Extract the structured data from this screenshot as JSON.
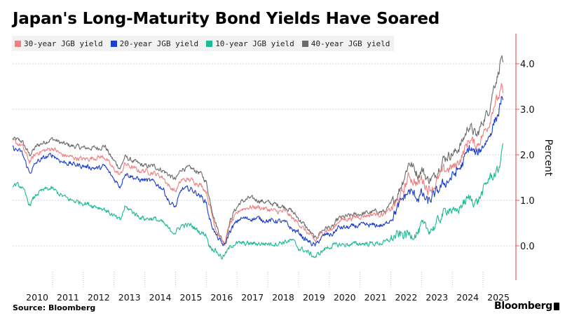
{
  "title": "Japan's Long-Maturity Bond Yields Have Soared",
  "source": "Source: Bloomberg",
  "brand": "Bloomberg",
  "chart_data": {
    "type": "line",
    "ylabel": "Percent",
    "ylim": [
      -0.75,
      4.7
    ],
    "xlim": [
      2009.7,
      2025.75
    ],
    "yticks": [
      {
        "value": 0.0,
        "label": "0.0"
      },
      {
        "value": 1.0,
        "label": "1.0"
      },
      {
        "value": 2.0,
        "label": "2.0"
      },
      {
        "value": 3.0,
        "label": "3.0"
      },
      {
        "value": 4.0,
        "label": "4.0"
      }
    ],
    "xticks": [
      {
        "value": 2010,
        "label": "2010"
      },
      {
        "value": 2011,
        "label": "2011"
      },
      {
        "value": 2012,
        "label": "2012"
      },
      {
        "value": 2013,
        "label": "2013"
      },
      {
        "value": 2014,
        "label": "2014"
      },
      {
        "value": 2015,
        "label": "2015"
      },
      {
        "value": 2016,
        "label": "2016"
      },
      {
        "value": 2017,
        "label": "2017"
      },
      {
        "value": 2018,
        "label": "2018"
      },
      {
        "value": 2019,
        "label": "2019"
      },
      {
        "value": 2020,
        "label": "2020"
      },
      {
        "value": 2021,
        "label": "2021"
      },
      {
        "value": 2022,
        "label": "2022"
      },
      {
        "value": 2023,
        "label": "2023"
      },
      {
        "value": 2024,
        "label": "2024"
      },
      {
        "value": 2025,
        "label": "2025"
      }
    ],
    "year_separators": [
      2011,
      2012,
      2013,
      2014,
      2015,
      2016,
      2017,
      2018,
      2019,
      2020,
      2021,
      2022,
      2023,
      2024,
      2025
    ],
    "series": [
      {
        "name": "40-year JGB yield",
        "label": "40-year JGB yield",
        "color": "#6b6b6b",
        "points": [
          [
            2009.7,
            2.35
          ],
          [
            2010.0,
            2.3
          ],
          [
            2010.25,
            2.0
          ],
          [
            2010.5,
            2.2
          ],
          [
            2010.8,
            2.3
          ],
          [
            2011.0,
            2.35
          ],
          [
            2011.3,
            2.25
          ],
          [
            2011.6,
            2.2
          ],
          [
            2012.0,
            2.15
          ],
          [
            2012.5,
            2.15
          ],
          [
            2012.7,
            2.2
          ],
          [
            2012.9,
            1.95
          ],
          [
            2013.2,
            1.7
          ],
          [
            2013.35,
            1.95
          ],
          [
            2013.5,
            1.9
          ],
          [
            2013.8,
            1.8
          ],
          [
            2014.0,
            1.75
          ],
          [
            2014.3,
            1.75
          ],
          [
            2014.6,
            1.65
          ],
          [
            2014.8,
            1.55
          ],
          [
            2015.0,
            1.45
          ],
          [
            2015.2,
            1.7
          ],
          [
            2015.5,
            1.7
          ],
          [
            2015.8,
            1.6
          ],
          [
            2016.0,
            1.4
          ],
          [
            2016.1,
            1.05
          ],
          [
            2016.3,
            0.5
          ],
          [
            2016.5,
            0.15
          ],
          [
            2016.6,
            0.05
          ],
          [
            2016.75,
            0.5
          ],
          [
            2016.9,
            0.75
          ],
          [
            2017.1,
            0.95
          ],
          [
            2017.4,
            1.05
          ],
          [
            2017.7,
            1.0
          ],
          [
            2018.0,
            0.95
          ],
          [
            2018.3,
            0.9
          ],
          [
            2018.6,
            0.85
          ],
          [
            2018.8,
            0.75
          ],
          [
            2019.0,
            0.6
          ],
          [
            2019.2,
            0.45
          ],
          [
            2019.55,
            0.15
          ],
          [
            2019.7,
            0.3
          ],
          [
            2019.9,
            0.4
          ],
          [
            2020.1,
            0.4
          ],
          [
            2020.3,
            0.6
          ],
          [
            2020.6,
            0.65
          ],
          [
            2021.0,
            0.7
          ],
          [
            2021.5,
            0.75
          ],
          [
            2021.8,
            0.75
          ],
          [
            2022.0,
            0.9
          ],
          [
            2022.2,
            1.1
          ],
          [
            2022.4,
            1.45
          ],
          [
            2022.6,
            1.85
          ],
          [
            2022.7,
            1.75
          ],
          [
            2022.9,
            1.55
          ],
          [
            2023.0,
            1.7
          ],
          [
            2023.2,
            1.45
          ],
          [
            2023.4,
            1.5
          ],
          [
            2023.7,
            1.9
          ],
          [
            2023.9,
            2.0
          ],
          [
            2024.1,
            2.05
          ],
          [
            2024.3,
            2.25
          ],
          [
            2024.55,
            2.65
          ],
          [
            2024.8,
            2.4
          ],
          [
            2025.0,
            2.75
          ],
          [
            2025.2,
            3.0
          ],
          [
            2025.35,
            3.5
          ],
          [
            2025.5,
            3.8
          ],
          [
            2025.6,
            4.2
          ],
          [
            2025.65,
            3.9
          ]
        ]
      },
      {
        "name": "30-year JGB yield",
        "label": "30-year JGB yield",
        "color": "#f07f7f",
        "points": [
          [
            2009.7,
            2.3
          ],
          [
            2010.0,
            2.2
          ],
          [
            2010.25,
            1.85
          ],
          [
            2010.5,
            2.05
          ],
          [
            2010.8,
            2.1
          ],
          [
            2011.0,
            2.15
          ],
          [
            2011.3,
            2.0
          ],
          [
            2011.6,
            1.95
          ],
          [
            2012.0,
            1.9
          ],
          [
            2012.5,
            1.95
          ],
          [
            2012.7,
            1.95
          ],
          [
            2012.9,
            1.75
          ],
          [
            2013.2,
            1.55
          ],
          [
            2013.35,
            1.8
          ],
          [
            2013.5,
            1.75
          ],
          [
            2013.8,
            1.65
          ],
          [
            2014.0,
            1.65
          ],
          [
            2014.3,
            1.6
          ],
          [
            2014.6,
            1.5
          ],
          [
            2014.8,
            1.3
          ],
          [
            2015.0,
            1.2
          ],
          [
            2015.2,
            1.45
          ],
          [
            2015.5,
            1.45
          ],
          [
            2015.8,
            1.35
          ],
          [
            2016.0,
            1.2
          ],
          [
            2016.1,
            0.9
          ],
          [
            2016.3,
            0.4
          ],
          [
            2016.5,
            0.1
          ],
          [
            2016.6,
            0.05
          ],
          [
            2016.75,
            0.45
          ],
          [
            2016.9,
            0.6
          ],
          [
            2017.1,
            0.8
          ],
          [
            2017.4,
            0.85
          ],
          [
            2017.7,
            0.85
          ],
          [
            2018.0,
            0.8
          ],
          [
            2018.3,
            0.75
          ],
          [
            2018.6,
            0.75
          ],
          [
            2018.8,
            0.6
          ],
          [
            2019.0,
            0.5
          ],
          [
            2019.2,
            0.35
          ],
          [
            2019.55,
            0.1
          ],
          [
            2019.7,
            0.25
          ],
          [
            2019.9,
            0.35
          ],
          [
            2020.1,
            0.35
          ],
          [
            2020.3,
            0.55
          ],
          [
            2020.6,
            0.6
          ],
          [
            2021.0,
            0.65
          ],
          [
            2021.5,
            0.7
          ],
          [
            2021.8,
            0.7
          ],
          [
            2022.0,
            0.8
          ],
          [
            2022.2,
            0.95
          ],
          [
            2022.4,
            1.2
          ],
          [
            2022.6,
            1.55
          ],
          [
            2022.7,
            1.45
          ],
          [
            2022.9,
            1.35
          ],
          [
            2023.0,
            1.5
          ],
          [
            2023.2,
            1.25
          ],
          [
            2023.4,
            1.3
          ],
          [
            2023.7,
            1.65
          ],
          [
            2023.9,
            1.7
          ],
          [
            2024.1,
            1.75
          ],
          [
            2024.3,
            1.95
          ],
          [
            2024.55,
            2.35
          ],
          [
            2024.8,
            2.2
          ],
          [
            2025.0,
            2.45
          ],
          [
            2025.2,
            2.7
          ],
          [
            2025.35,
            3.1
          ],
          [
            2025.5,
            3.25
          ],
          [
            2025.6,
            3.45
          ],
          [
            2025.65,
            3.35
          ]
        ]
      },
      {
        "name": "20-year JGB yield",
        "label": "20-year JGB yield",
        "color": "#1d3fc9",
        "points": [
          [
            2009.7,
            2.15
          ],
          [
            2010.0,
            2.05
          ],
          [
            2010.25,
            1.6
          ],
          [
            2010.5,
            1.85
          ],
          [
            2010.8,
            1.95
          ],
          [
            2011.0,
            2.0
          ],
          [
            2011.3,
            1.85
          ],
          [
            2011.6,
            1.8
          ],
          [
            2012.0,
            1.75
          ],
          [
            2012.5,
            1.7
          ],
          [
            2012.7,
            1.75
          ],
          [
            2012.9,
            1.55
          ],
          [
            2013.2,
            1.3
          ],
          [
            2013.35,
            1.6
          ],
          [
            2013.5,
            1.55
          ],
          [
            2013.8,
            1.45
          ],
          [
            2014.0,
            1.45
          ],
          [
            2014.3,
            1.4
          ],
          [
            2014.6,
            1.25
          ],
          [
            2014.8,
            0.95
          ],
          [
            2015.0,
            0.85
          ],
          [
            2015.2,
            1.25
          ],
          [
            2015.5,
            1.25
          ],
          [
            2015.8,
            1.1
          ],
          [
            2016.0,
            0.95
          ],
          [
            2016.1,
            0.6
          ],
          [
            2016.3,
            0.25
          ],
          [
            2016.5,
            0.05
          ],
          [
            2016.6,
            0.0
          ],
          [
            2016.75,
            0.3
          ],
          [
            2016.9,
            0.45
          ],
          [
            2017.1,
            0.6
          ],
          [
            2017.4,
            0.6
          ],
          [
            2017.7,
            0.6
          ],
          [
            2018.0,
            0.55
          ],
          [
            2018.3,
            0.55
          ],
          [
            2018.6,
            0.5
          ],
          [
            2018.8,
            0.35
          ],
          [
            2019.0,
            0.3
          ],
          [
            2019.2,
            0.15
          ],
          [
            2019.55,
            0.0
          ],
          [
            2019.7,
            0.15
          ],
          [
            2019.9,
            0.25
          ],
          [
            2020.1,
            0.25
          ],
          [
            2020.3,
            0.4
          ],
          [
            2020.6,
            0.4
          ],
          [
            2021.0,
            0.45
          ],
          [
            2021.5,
            0.45
          ],
          [
            2021.8,
            0.45
          ],
          [
            2022.0,
            0.6
          ],
          [
            2022.2,
            0.8
          ],
          [
            2022.4,
            1.05
          ],
          [
            2022.6,
            1.2
          ],
          [
            2022.7,
            1.15
          ],
          [
            2022.9,
            1.05
          ],
          [
            2023.0,
            1.15
          ],
          [
            2023.2,
            0.95
          ],
          [
            2023.4,
            1.1
          ],
          [
            2023.7,
            1.35
          ],
          [
            2023.9,
            1.45
          ],
          [
            2024.1,
            1.6
          ],
          [
            2024.3,
            1.75
          ],
          [
            2024.55,
            2.15
          ],
          [
            2024.8,
            2.0
          ],
          [
            2025.0,
            2.2
          ],
          [
            2025.2,
            2.4
          ],
          [
            2025.35,
            2.7
          ],
          [
            2025.5,
            2.9
          ],
          [
            2025.6,
            3.25
          ],
          [
            2025.65,
            3.05
          ]
        ]
      },
      {
        "name": "10-year JGB yield",
        "label": "10-year JGB yield",
        "color": "#1fba93",
        "points": [
          [
            2009.7,
            1.35
          ],
          [
            2010.0,
            1.3
          ],
          [
            2010.25,
            0.9
          ],
          [
            2010.5,
            1.15
          ],
          [
            2010.8,
            1.25
          ],
          [
            2011.0,
            1.25
          ],
          [
            2011.3,
            1.1
          ],
          [
            2011.6,
            1.0
          ],
          [
            2012.0,
            0.95
          ],
          [
            2012.5,
            0.85
          ],
          [
            2012.7,
            0.8
          ],
          [
            2012.9,
            0.7
          ],
          [
            2013.2,
            0.55
          ],
          [
            2013.35,
            0.85
          ],
          [
            2013.5,
            0.8
          ],
          [
            2013.8,
            0.65
          ],
          [
            2014.0,
            0.6
          ],
          [
            2014.3,
            0.6
          ],
          [
            2014.6,
            0.5
          ],
          [
            2014.8,
            0.35
          ],
          [
            2015.0,
            0.3
          ],
          [
            2015.2,
            0.45
          ],
          [
            2015.5,
            0.45
          ],
          [
            2015.8,
            0.3
          ],
          [
            2016.0,
            0.25
          ],
          [
            2016.1,
            0.0
          ],
          [
            2016.3,
            -0.1
          ],
          [
            2016.5,
            -0.25
          ],
          [
            2016.6,
            -0.2
          ],
          [
            2016.75,
            -0.05
          ],
          [
            2016.9,
            0.05
          ],
          [
            2017.1,
            0.05
          ],
          [
            2017.4,
            0.05
          ],
          [
            2017.7,
            0.05
          ],
          [
            2018.0,
            0.05
          ],
          [
            2018.3,
            0.05
          ],
          [
            2018.6,
            0.1
          ],
          [
            2018.8,
            0.12
          ],
          [
            2019.0,
            -0.05
          ],
          [
            2019.2,
            -0.1
          ],
          [
            2019.55,
            -0.25
          ],
          [
            2019.7,
            -0.15
          ],
          [
            2019.9,
            -0.05
          ],
          [
            2020.1,
            0.0
          ],
          [
            2020.3,
            0.02
          ],
          [
            2020.6,
            0.03
          ],
          [
            2021.0,
            0.05
          ],
          [
            2021.5,
            0.05
          ],
          [
            2021.8,
            0.07
          ],
          [
            2022.0,
            0.15
          ],
          [
            2022.2,
            0.22
          ],
          [
            2022.4,
            0.25
          ],
          [
            2022.6,
            0.25
          ],
          [
            2022.7,
            0.25
          ],
          [
            2022.9,
            0.3
          ],
          [
            2023.0,
            0.45
          ],
          [
            2023.2,
            0.35
          ],
          [
            2023.4,
            0.4
          ],
          [
            2023.7,
            0.7
          ],
          [
            2023.9,
            0.85
          ],
          [
            2024.1,
            0.7
          ],
          [
            2024.3,
            0.9
          ],
          [
            2024.55,
            1.05
          ],
          [
            2024.8,
            0.95
          ],
          [
            2025.0,
            1.2
          ],
          [
            2025.2,
            1.5
          ],
          [
            2025.35,
            1.55
          ],
          [
            2025.5,
            1.65
          ],
          [
            2025.6,
            2.0
          ],
          [
            2025.65,
            2.3
          ]
        ]
      }
    ]
  }
}
